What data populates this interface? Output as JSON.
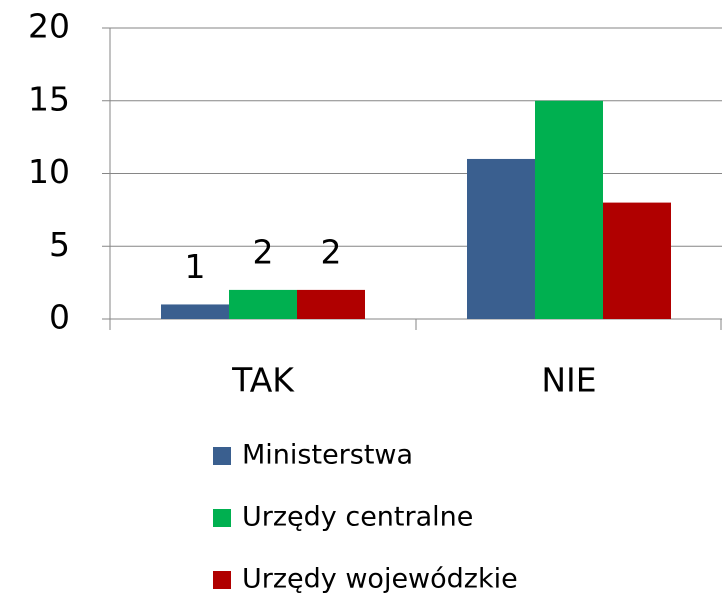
{
  "chart_data": {
    "type": "bar",
    "categories": [
      "TAK",
      "NIE"
    ],
    "series": [
      {
        "name": "Ministerstwa",
        "color": "#3a5f8f",
        "values": [
          1,
          11
        ],
        "value_labels": [
          "1",
          null
        ]
      },
      {
        "name": "Urzędy centralne",
        "color": "#00b050",
        "values": [
          2,
          15
        ],
        "value_labels": [
          "2",
          null
        ]
      },
      {
        "name": "Urzędy wojewódzkie",
        "color": "#b00000",
        "values": [
          2,
          8
        ],
        "value_labels": [
          "2",
          null
        ]
      }
    ],
    "ylim": [
      0,
      20
    ],
    "yticks": [
      0,
      5,
      10,
      15,
      20
    ],
    "grid": true,
    "legend": "bottom"
  }
}
